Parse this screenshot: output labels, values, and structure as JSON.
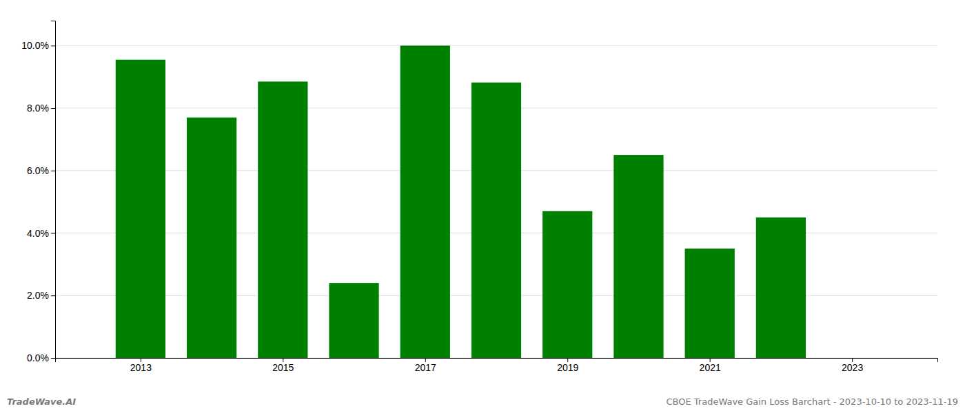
{
  "chart_data": {
    "type": "bar",
    "x": [
      2013,
      2014,
      2015,
      2016,
      2017,
      2018,
      2019,
      2020,
      2021,
      2022
    ],
    "values": [
      0.0955,
      0.077,
      0.0885,
      0.024,
      0.1,
      0.0882,
      0.047,
      0.065,
      0.035,
      0.045
    ],
    "color": "#008000",
    "xlim": [
      2011.8,
      2024.2
    ],
    "xticks": [
      2013,
      2015,
      2017,
      2019,
      2021,
      2023
    ],
    "ylim": [
      0,
      0.108
    ],
    "yticks": [
      {
        "value": 0.0,
        "label": "0.0%"
      },
      {
        "value": 0.02,
        "label": "2.0%"
      },
      {
        "value": 0.04,
        "label": "4.0%"
      },
      {
        "value": 0.06,
        "label": "6.0%"
      },
      {
        "value": 0.08,
        "label": "8.0%"
      },
      {
        "value": 0.1,
        "label": "10.0%"
      }
    ],
    "grid": true,
    "annotations": [
      "TradeWave.AI",
      "CBOE TradeWave Gain Loss Barchart - 2023-10-10 to 2023-11-19"
    ]
  }
}
